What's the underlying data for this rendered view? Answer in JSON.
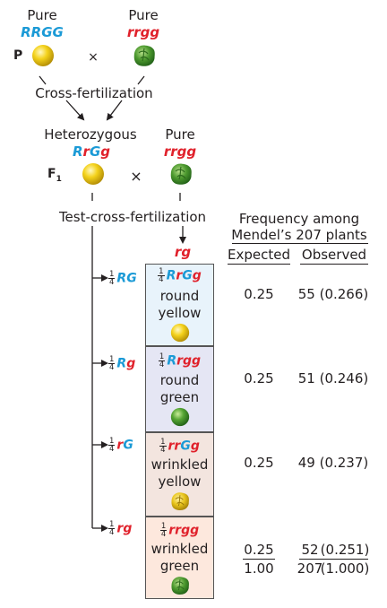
{
  "parents": {
    "left_label": "Pure",
    "left_genotype": "RRGG",
    "right_label": "Pure",
    "right_genotype": "rrgg",
    "gen_label": "P",
    "cross_symbol": "×"
  },
  "cross_fertilization": "Cross-fertilization",
  "f1": {
    "left_label": "Heterozygous",
    "right_label": "Pure",
    "right_genotype": "rrgg",
    "gen_label": "F",
    "gen_sub": "1",
    "cross_symbol": "×"
  },
  "test_cross": "Test-cross-fertilization",
  "pollen_gamete": "rg",
  "frequency_header": {
    "line1": "Frequency among",
    "line2": "Mendel’s 207 plants",
    "expected": "Expected",
    "observed": "Observed"
  },
  "fraction": {
    "num": "1",
    "den": "4"
  },
  "rows": [
    {
      "gamete": "RG",
      "genotype": "RrGg",
      "trait1": "round",
      "trait2": "yellow",
      "expected": "0.25",
      "observed": "55 (0.266)",
      "pea": "round-yellow-pea-icon",
      "bg": "#e8f3fb"
    },
    {
      "gamete": "Rg",
      "genotype": "Rrgg",
      "trait1": "round",
      "trait2": "green",
      "expected": "0.25",
      "observed": "51 (0.246)",
      "pea": "round-green-pea-icon",
      "bg": "#e5e6f4"
    },
    {
      "gamete": "rG",
      "genotype": "rrGg",
      "trait1": "wrinkled",
      "trait2": "yellow",
      "expected": "0.25",
      "observed": "49 (0.237)",
      "pea": "wrinkled-yellow-pea-icon",
      "bg": "#f3e5df"
    },
    {
      "gamete": "rg",
      "genotype": "rrgg",
      "trait1": "wrinkled",
      "trait2": "green",
      "expected": "0.25",
      "observed_count": "52",
      "observed_freq": "(0.251)",
      "pea": "wrinkled-green-pea-icon",
      "bg": "#fde8dd"
    }
  ],
  "totals": {
    "expected": "1.00",
    "observed_count": "207",
    "observed_freq": "(1.000)"
  },
  "colors": {
    "dominant_allele": "#1b9ad6",
    "recessive_allele": "#e0212b"
  }
}
